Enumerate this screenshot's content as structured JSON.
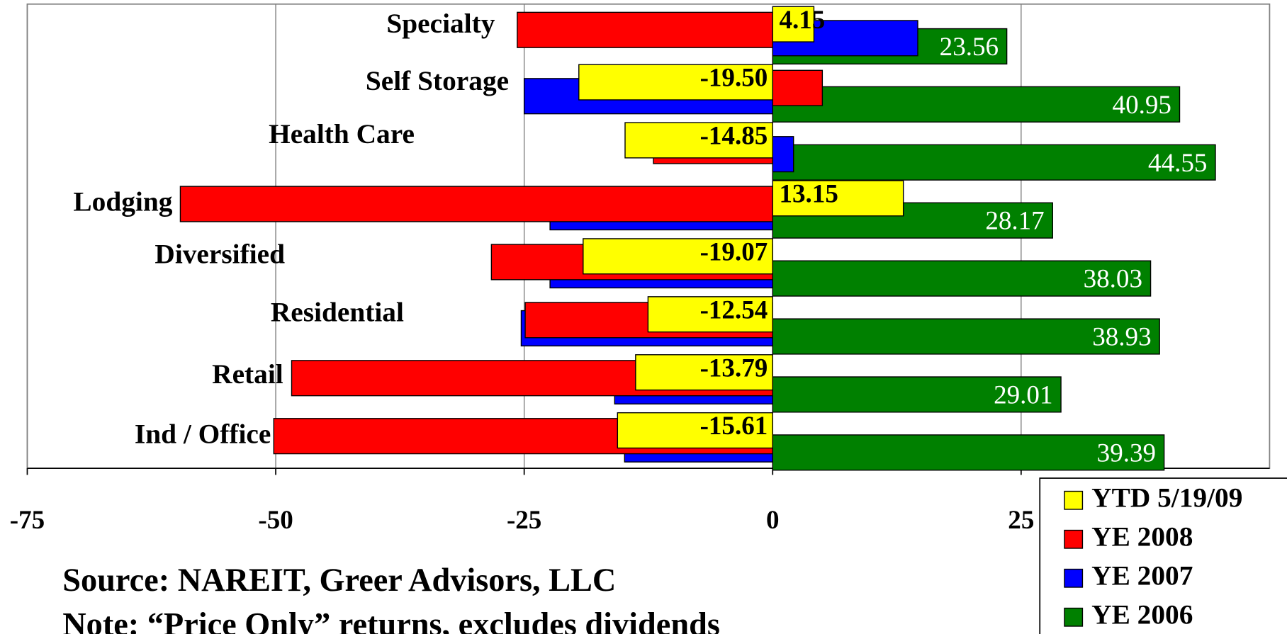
{
  "chart_data": {
    "type": "hbar",
    "categories": [
      "Specialty",
      "Self Storage",
      "Health Care",
      "Lodging",
      "Diversified",
      "Residential",
      "Retail",
      "Ind / Office"
    ],
    "series": [
      {
        "name": "YTD 5/19/09",
        "color": "#ffff00",
        "values": [
          4.15,
          -19.5,
          -14.85,
          13.15,
          -19.07,
          -12.54,
          -13.79,
          -15.61
        ],
        "value_labels": [
          "4.15",
          "-19.50",
          "-14.85",
          "13.15",
          "-19.07",
          "-12.54",
          "-13.79",
          "-15.61"
        ]
      },
      {
        "name": "YE 2008",
        "color": "#ff0000",
        "values": [
          -25.7,
          5.0,
          -12.0,
          -59.6,
          -28.3,
          -24.9,
          -48.4,
          -50.2
        ]
      },
      {
        "name": "YE 2007",
        "color": "#0000ff",
        "values": [
          14.6,
          -25.0,
          2.1,
          -22.4,
          -22.4,
          -25.3,
          -15.9,
          -14.9
        ]
      },
      {
        "name": "YE 2006",
        "color": "#008000",
        "values": [
          23.56,
          40.95,
          44.55,
          28.17,
          38.03,
          38.93,
          29.01,
          39.39
        ],
        "value_labels": [
          "23.56",
          "40.95",
          "44.55",
          "28.17",
          "38.03",
          "38.93",
          "29.01",
          "39.39"
        ]
      }
    ],
    "xlim": [
      -75,
      50
    ],
    "xticks": [
      -75,
      -50,
      -25,
      0,
      25
    ],
    "grid": true,
    "legend": "bottom-right",
    "annotations": [
      "Source: NAREIT, Greer Advisors, LLC",
      "Note: “Price Only” returns, excludes dividends"
    ]
  }
}
